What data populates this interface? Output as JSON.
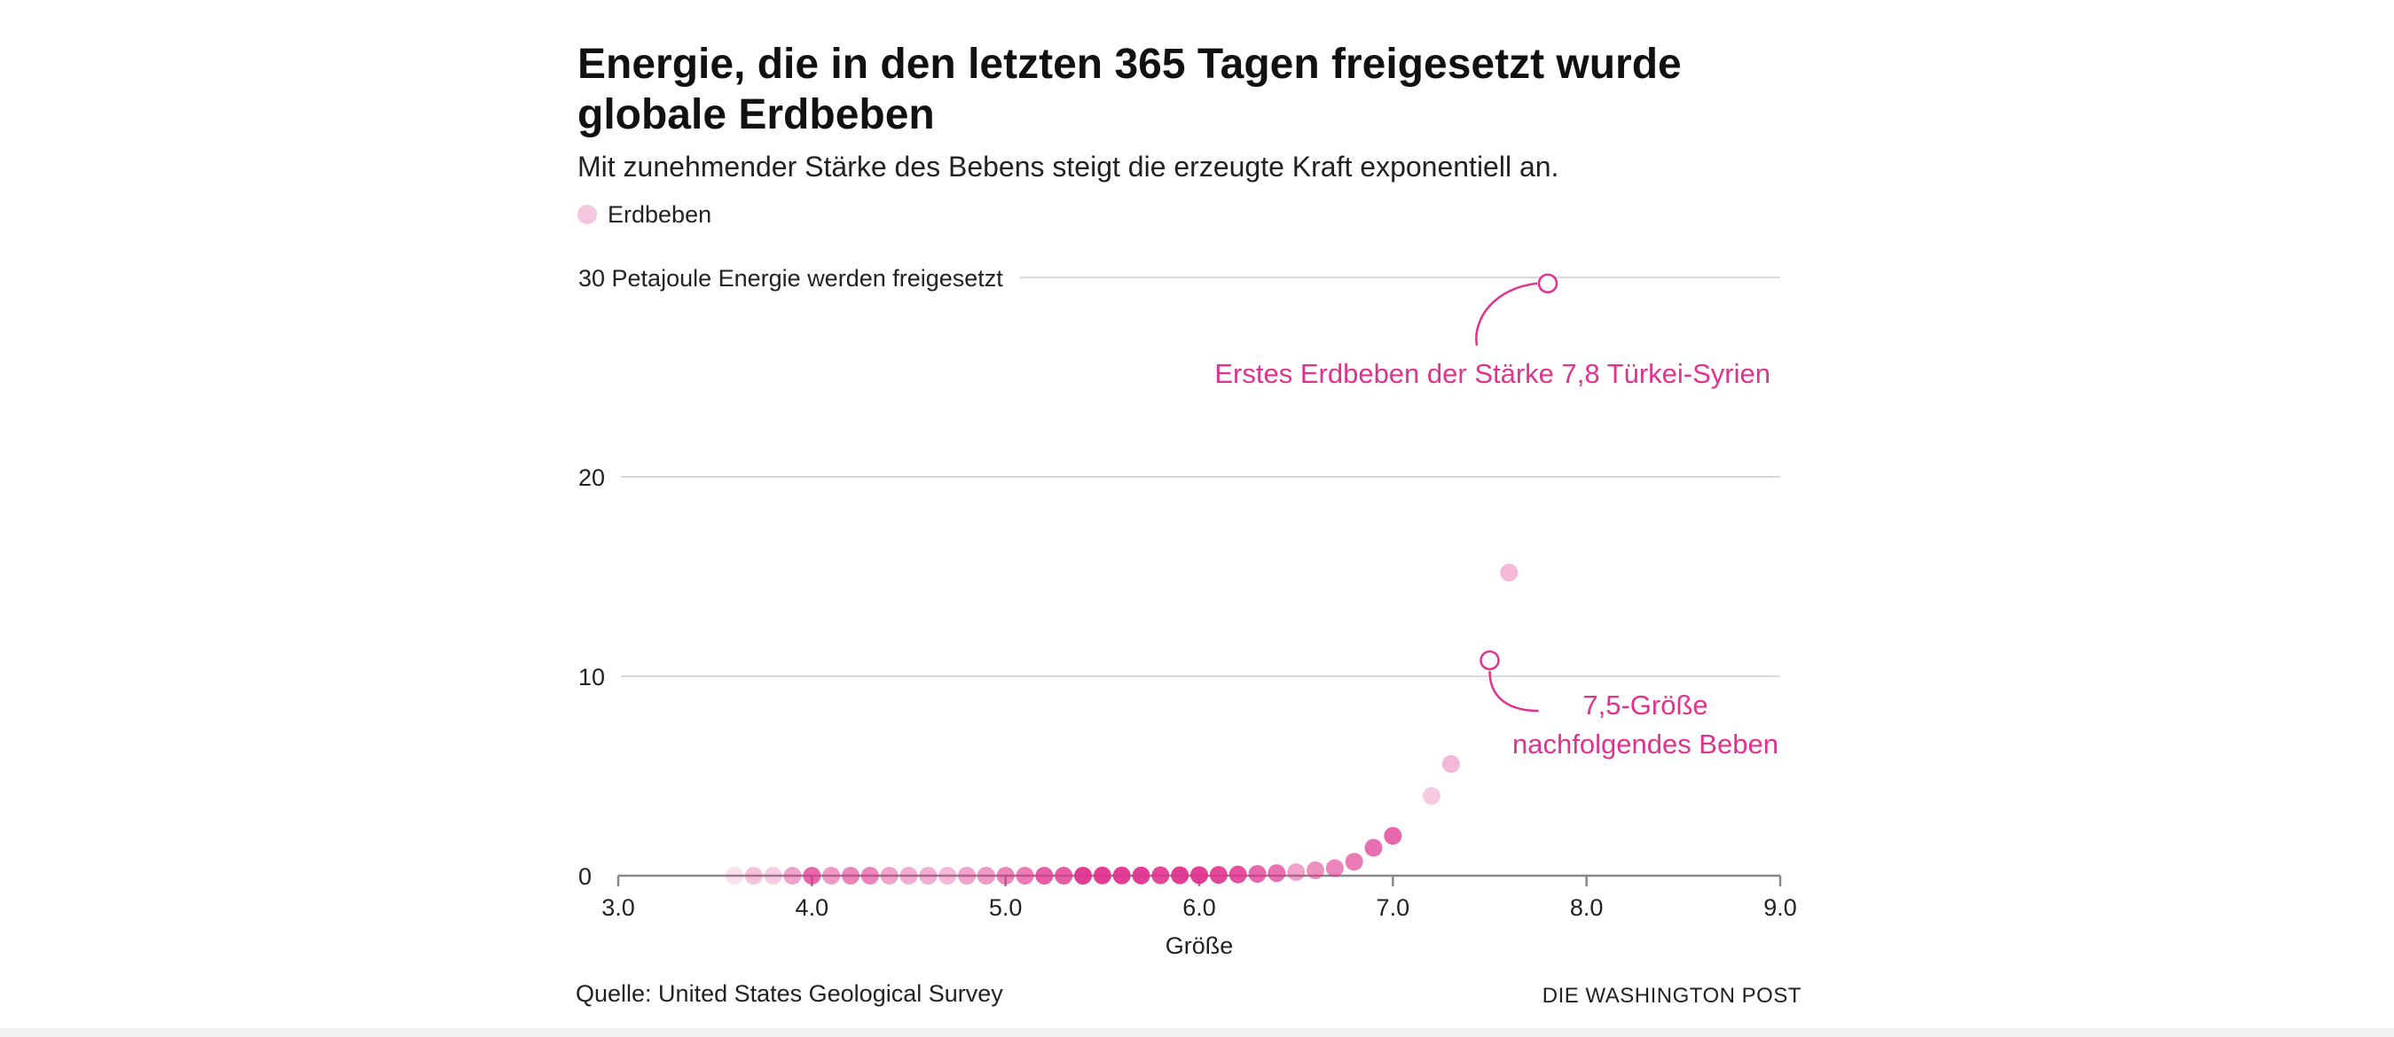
{
  "header": {
    "title": "Energie, die in den letzten 365 Tagen freigesetzt wurde globale Erdbeben",
    "subtitle": "Mit zunehmender Stärke des Bebens steigt die erzeugte Kraft exponentiell an."
  },
  "legend": {
    "label": "Erdbeben",
    "color": "#f4c6e0"
  },
  "footer": {
    "source": "Quelle: United States Geological Survey",
    "credit": "DIE WASHINGTON POST"
  },
  "colors": {
    "accent": "#e0338f",
    "grid": "#d9d9d9",
    "axis": "#888888"
  },
  "chart_data": {
    "type": "scatter",
    "xlabel": "Größe",
    "ylabel": "",
    "xlim": [
      3.0,
      9.0
    ],
    "ylim": [
      0,
      30
    ],
    "x_ticks": [
      "3.0",
      "4.0",
      "5.0",
      "6.0",
      "7.0",
      "8.0",
      "9.0"
    ],
    "y_ticks": [
      {
        "value": 0,
        "label": "0"
      },
      {
        "value": 10,
        "label": "10"
      },
      {
        "value": 20,
        "label": "20"
      },
      {
        "value": 30,
        "label": "30 Petajoule Energie werden freigesetzt"
      }
    ],
    "grid": true,
    "series": [
      {
        "points": [
          {
            "x": 3.6,
            "y": 0.0,
            "opacity": 0.15
          },
          {
            "x": 3.7,
            "y": 0.0,
            "opacity": 0.3
          },
          {
            "x": 3.8,
            "y": 0.0,
            "opacity": 0.25
          },
          {
            "x": 3.9,
            "y": 0.0,
            "opacity": 0.45
          },
          {
            "x": 4.0,
            "y": 0.0,
            "opacity": 0.75
          },
          {
            "x": 4.1,
            "y": 0.0,
            "opacity": 0.5
          },
          {
            "x": 4.2,
            "y": 0.0,
            "opacity": 0.6
          },
          {
            "x": 4.3,
            "y": 0.0,
            "opacity": 0.6
          },
          {
            "x": 4.4,
            "y": 0.0,
            "opacity": 0.45
          },
          {
            "x": 4.5,
            "y": 0.0,
            "opacity": 0.4
          },
          {
            "x": 4.6,
            "y": 0.0,
            "opacity": 0.4
          },
          {
            "x": 4.7,
            "y": 0.0,
            "opacity": 0.35
          },
          {
            "x": 4.8,
            "y": 0.0,
            "opacity": 0.45
          },
          {
            "x": 4.9,
            "y": 0.0,
            "opacity": 0.5
          },
          {
            "x": 5.0,
            "y": 0.0,
            "opacity": 0.6
          },
          {
            "x": 5.1,
            "y": 0.0,
            "opacity": 0.65
          },
          {
            "x": 5.2,
            "y": 0.0,
            "opacity": 0.8
          },
          {
            "x": 5.3,
            "y": 0.0,
            "opacity": 0.8
          },
          {
            "x": 5.4,
            "y": 0.0,
            "opacity": 0.95
          },
          {
            "x": 5.5,
            "y": 0.01,
            "opacity": 0.95
          },
          {
            "x": 5.6,
            "y": 0.01,
            "opacity": 0.95
          },
          {
            "x": 5.7,
            "y": 0.01,
            "opacity": 0.95
          },
          {
            "x": 5.8,
            "y": 0.02,
            "opacity": 0.9
          },
          {
            "x": 5.9,
            "y": 0.02,
            "opacity": 0.95
          },
          {
            "x": 6.0,
            "y": 0.03,
            "opacity": 0.95
          },
          {
            "x": 6.1,
            "y": 0.04,
            "opacity": 0.9
          },
          {
            "x": 6.2,
            "y": 0.06,
            "opacity": 0.85
          },
          {
            "x": 6.3,
            "y": 0.09,
            "opacity": 0.75
          },
          {
            "x": 6.4,
            "y": 0.13,
            "opacity": 0.7
          },
          {
            "x": 6.5,
            "y": 0.18,
            "opacity": 0.45
          },
          {
            "x": 6.6,
            "y": 0.27,
            "opacity": 0.55
          },
          {
            "x": 6.7,
            "y": 0.38,
            "opacity": 0.6
          },
          {
            "x": 6.8,
            "y": 0.7,
            "opacity": 0.65
          },
          {
            "x": 6.9,
            "y": 1.4,
            "opacity": 0.7
          },
          {
            "x": 7.0,
            "y": 2.0,
            "opacity": 0.75
          },
          {
            "x": 7.2,
            "y": 4.0,
            "opacity": 0.25
          },
          {
            "x": 7.3,
            "y": 5.6,
            "opacity": 0.35
          },
          {
            "x": 7.6,
            "y": 15.2,
            "opacity": 0.35
          }
        ]
      }
    ],
    "highlights": [
      {
        "x": 7.8,
        "y": 29.7,
        "label": "Erstes Erdbeben der Stärke 7,8 Türkei-Syrien"
      },
      {
        "x": 7.5,
        "y": 10.8,
        "label_lines": [
          "7,5-Größe",
          "nachfolgendes Beben"
        ]
      }
    ]
  }
}
